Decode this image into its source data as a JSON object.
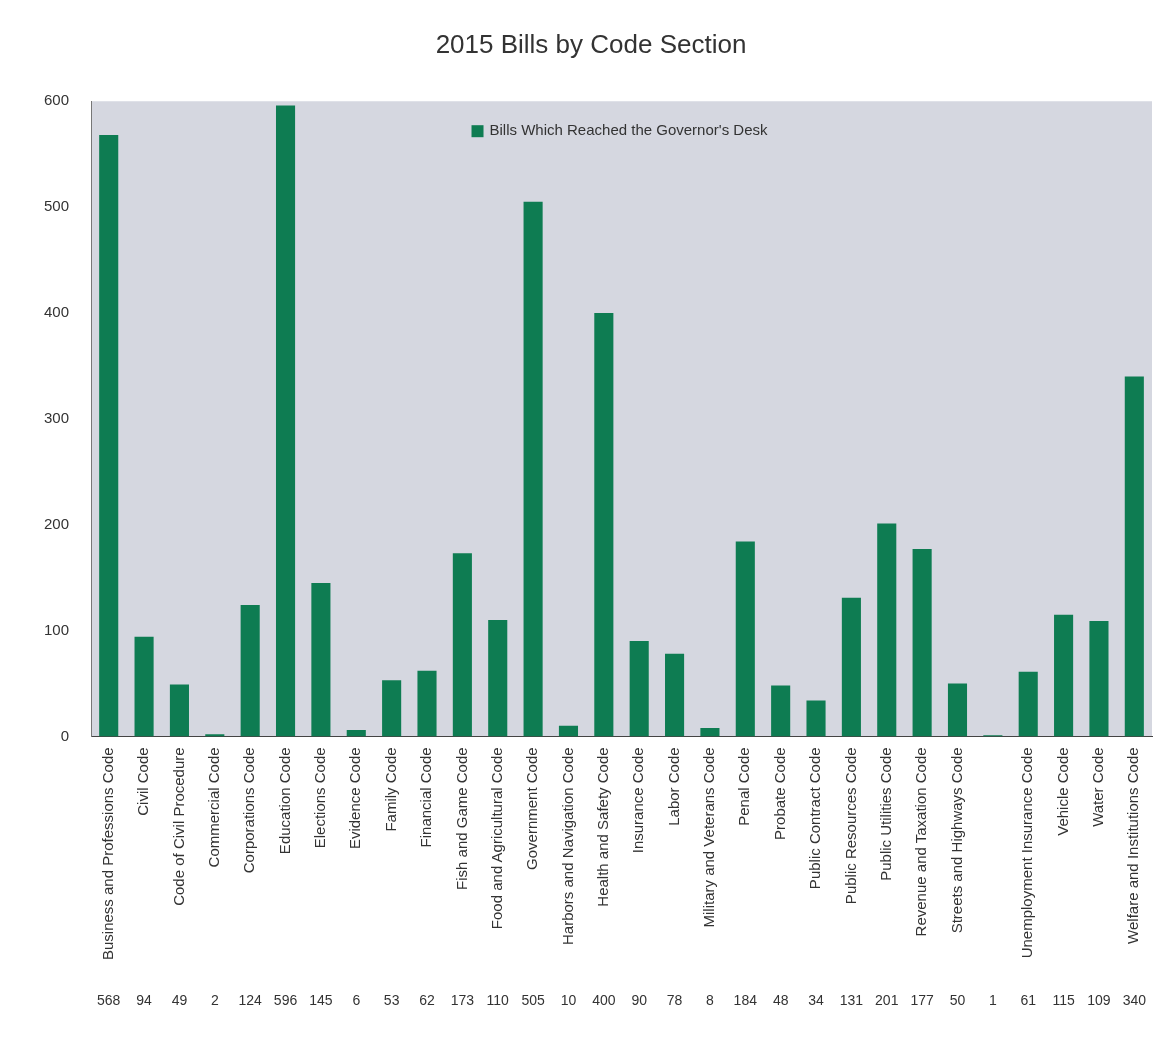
{
  "chart_data": {
    "type": "bar",
    "title": "2015 Bills by Code Section",
    "categories": [
      "Business and Professions Code",
      "Civil Code",
      "Code of Civil Procedure",
      "Commercial Code",
      "Corporations Code",
      "Education Code",
      "Elections Code",
      "Evidence Code",
      "Family Code",
      "Financial Code",
      "Fish and Game Code",
      "Food and Agricultural Code",
      "Government Code",
      "Harbors and Navigation Code",
      "Health and Safety Code",
      "Insurance Code",
      "Labor Code",
      "Military and Veterans Code",
      "Penal Code",
      "Probate Code",
      "Public Contract Code",
      "Public Resources Code",
      "Public Utilities Code",
      "Revenue and Taxation Code",
      "Streets and Highways Code",
      null,
      "Unemployment Insurance Code",
      "Vehicle Code",
      "Water Code",
      "Welfare and Institutions Code"
    ],
    "series": [
      {
        "name": "Bills Which Reached the Governor's Desk",
        "color": "#0e7c52",
        "values": [
          568,
          94,
          49,
          2,
          124,
          596,
          145,
          6,
          53,
          62,
          173,
          110,
          505,
          10,
          400,
          90,
          78,
          8,
          184,
          48,
          34,
          131,
          201,
          177,
          50,
          1,
          61,
          115,
          109,
          340
        ]
      }
    ],
    "ylim": [
      0,
      600
    ],
    "yticks": [
      0,
      100,
      200,
      300,
      400,
      500,
      600
    ],
    "grid": false,
    "legend": "top",
    "data_labels": true
  }
}
